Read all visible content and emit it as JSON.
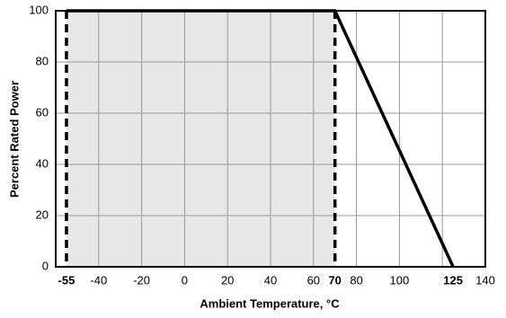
{
  "chart_data": {
    "type": "line",
    "xlabel": "Ambient Temperature, °C",
    "ylabel": "Percent Rated Power",
    "xlim": [
      -60,
      140
    ],
    "ylim": [
      0,
      100
    ],
    "xticks": [
      -40,
      -20,
      0,
      20,
      40,
      60,
      80,
      100,
      140
    ],
    "highlight_xticks": [
      -55,
      70,
      125
    ],
    "xgrid": [
      -40,
      -20,
      0,
      20,
      40,
      60,
      80,
      100,
      120
    ],
    "yticks": [
      0,
      20,
      40,
      60,
      80,
      100
    ],
    "grid": true,
    "shade": {
      "x": [
        -55,
        70
      ],
      "color": "#e8e8e8"
    },
    "series": [
      {
        "color": "#000000",
        "x": [
          -55,
          70,
          125
        ],
        "values": [
          100,
          100,
          0
        ]
      }
    ]
  }
}
